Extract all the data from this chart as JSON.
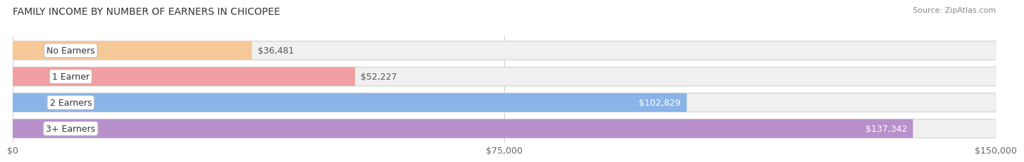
{
  "title": "FAMILY INCOME BY NUMBER OF EARNERS IN CHICOPEE",
  "source": "Source: ZipAtlas.com",
  "categories": [
    "No Earners",
    "1 Earner",
    "2 Earners",
    "3+ Earners"
  ],
  "values": [
    36481,
    52227,
    102829,
    137342
  ],
  "bar_colors": [
    "#f5c897",
    "#f0a0a0",
    "#8ab4e8",
    "#b890cc"
  ],
  "bar_bg_color": "#f0f0f0",
  "bar_border_color": "#d8d8d8",
  "value_labels": [
    "$36,481",
    "$52,227",
    "$102,829",
    "$137,342"
  ],
  "value_label_inside_threshold": 0.6,
  "xlim": [
    0,
    150000
  ],
  "xticks": [
    0,
    75000,
    150000
  ],
  "xtick_labels": [
    "$0",
    "$75,000",
    "$150,000"
  ],
  "background_color": "#ffffff",
  "plot_bg_color": "#ffffff",
  "title_fontsize": 10,
  "source_fontsize": 8,
  "label_fontsize": 9,
  "tick_fontsize": 9,
  "bar_height": 0.72,
  "n_bars": 4,
  "grid_color": "#cccccc",
  "grid_linewidth": 0.7
}
